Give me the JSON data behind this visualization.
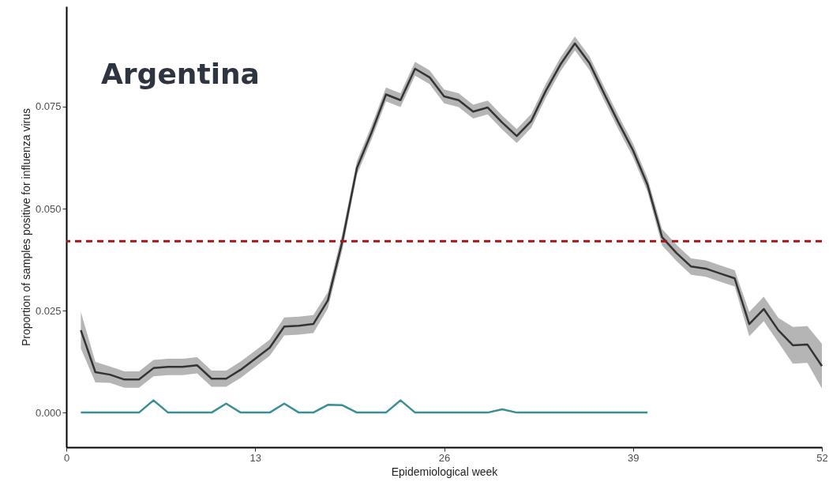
{
  "chart_data": {
    "type": "line",
    "title": "Argentina",
    "xlabel": "Epidemiological week",
    "ylabel": "Proportion of samples positive for influenza virus",
    "xlim": [
      0,
      52
    ],
    "xticks": [
      0,
      13,
      26,
      39,
      52
    ],
    "ylim": [
      -0.0085,
      0.0996
    ],
    "yticks": [
      {
        "value": 0,
        "label": "0.000"
      },
      {
        "value": 0.025,
        "label": "0.025"
      },
      {
        "value": 0.05,
        "label": "0.050"
      },
      {
        "value": 0.075,
        "label": "0.075"
      }
    ],
    "grid": false,
    "line_style": "solid",
    "marker": "none",
    "series": [
      {
        "color": "#333333",
        "x": [
          1,
          2,
          3,
          4,
          5,
          6,
          7,
          8,
          9,
          10,
          11,
          12,
          13,
          14,
          15,
          16,
          17,
          18,
          19,
          20,
          21,
          22,
          23,
          24,
          25,
          26,
          27,
          28,
          29,
          30,
          31,
          32,
          33,
          34,
          35,
          36,
          37,
          38,
          39,
          40,
          41,
          42,
          43,
          44,
          45,
          46,
          47,
          48,
          49,
          50,
          51,
          52
        ],
        "values": [
          0.0202,
          0.0099,
          0.0093,
          0.0081,
          0.0081,
          0.0109,
          0.0112,
          0.0112,
          0.0116,
          0.0083,
          0.0083,
          0.0105,
          0.0132,
          0.0159,
          0.0211,
          0.0213,
          0.0217,
          0.0275,
          0.042,
          0.06,
          0.0686,
          0.078,
          0.0766,
          0.0843,
          0.0822,
          0.0775,
          0.0766,
          0.0738,
          0.0748,
          0.0711,
          0.0678,
          0.0715,
          0.0789,
          0.0853,
          0.0905,
          0.0857,
          0.0783,
          0.0711,
          0.0643,
          0.0558,
          0.043,
          0.0391,
          0.0358,
          0.0353,
          0.0341,
          0.0329,
          0.0217,
          0.0254,
          0.0202,
          0.0165,
          0.0167,
          0.0114
        ],
        "lower": [
          0.0157,
          0.0074,
          0.0073,
          0.0061,
          0.0061,
          0.0089,
          0.0092,
          0.0092,
          0.0096,
          0.0063,
          0.0063,
          0.0085,
          0.0112,
          0.0139,
          0.0189,
          0.0191,
          0.0195,
          0.0255,
          0.04,
          0.0583,
          0.0669,
          0.0763,
          0.0749,
          0.0826,
          0.0805,
          0.0758,
          0.0749,
          0.0721,
          0.0731,
          0.0694,
          0.0661,
          0.0698,
          0.0772,
          0.0836,
          0.0888,
          0.084,
          0.0766,
          0.0694,
          0.0626,
          0.0541,
          0.041,
          0.0371,
          0.0338,
          0.0333,
          0.0321,
          0.0309,
          0.0187,
          0.0224,
          0.0172,
          0.012,
          0.0122,
          0.0059
        ],
        "upper": [
          0.0247,
          0.0124,
          0.0113,
          0.0101,
          0.0101,
          0.0129,
          0.0132,
          0.0132,
          0.0136,
          0.0103,
          0.0103,
          0.0125,
          0.0152,
          0.0179,
          0.0233,
          0.0235,
          0.0239,
          0.0295,
          0.044,
          0.0617,
          0.0703,
          0.0797,
          0.0783,
          0.086,
          0.0839,
          0.0792,
          0.0783,
          0.0755,
          0.0765,
          0.0728,
          0.0695,
          0.0732,
          0.0806,
          0.087,
          0.0922,
          0.0874,
          0.08,
          0.0728,
          0.066,
          0.0575,
          0.045,
          0.0411,
          0.0378,
          0.0373,
          0.0361,
          0.0349,
          0.0247,
          0.0284,
          0.0232,
          0.021,
          0.0212,
          0.0169
        ]
      },
      {
        "color": "#3a8f94",
        "x": [
          1,
          2,
          3,
          4,
          5,
          6,
          7,
          8,
          9,
          10,
          11,
          12,
          13,
          14,
          15,
          16,
          17,
          18,
          19,
          20,
          21,
          22,
          23,
          24,
          25,
          26,
          27,
          28,
          29,
          30,
          31,
          32,
          33,
          34,
          35,
          36,
          37,
          38,
          39,
          40
        ],
        "values": [
          0,
          0,
          0,
          0,
          0,
          0.003,
          0,
          0,
          0,
          0,
          0.0022,
          0,
          0,
          0,
          0.0022,
          0,
          0,
          0.0019,
          0.0018,
          0,
          0,
          0,
          0.003,
          0,
          0,
          0,
          0,
          0,
          0,
          0.0008,
          0,
          0,
          0,
          0,
          0,
          0,
          0,
          0,
          0,
          0
        ]
      }
    ],
    "ref_lines": [
      {
        "axis": "y",
        "value": 0.042,
        "color": "#a51515",
        "line_style": "dashed"
      }
    ]
  }
}
